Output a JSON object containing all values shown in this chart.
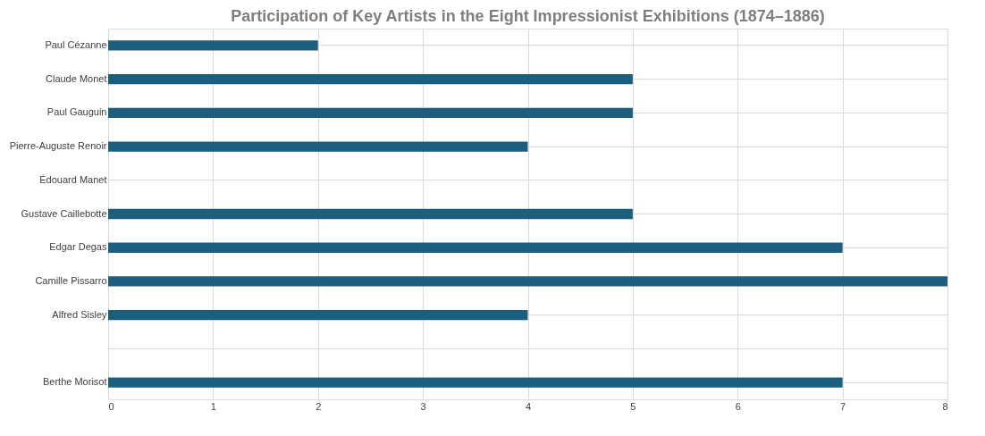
{
  "chart_data": {
    "type": "bar",
    "orientation": "horizontal",
    "title": "Participation of Key Artists in the Eight Impressionist Exhibitions (1874–1886)",
    "categories": [
      "Paul Cézanne",
      "Claude Monet",
      "Paul Gauguin",
      "Pierre-Auguste Renoir",
      "Édouard Manet",
      "Gustave Caillebotte",
      "Edgar Degas",
      "Camille Pissarro",
      "Alfred Sisley",
      null,
      "Berthe Morisot"
    ],
    "values": [
      2,
      5,
      5,
      4,
      0,
      5,
      7,
      8,
      4,
      null,
      7
    ],
    "color": "#1b5e7e",
    "xlim": [
      0,
      8
    ],
    "xticks": [
      0,
      1,
      2,
      3,
      4,
      5,
      6,
      7,
      8
    ],
    "grid": true
  }
}
